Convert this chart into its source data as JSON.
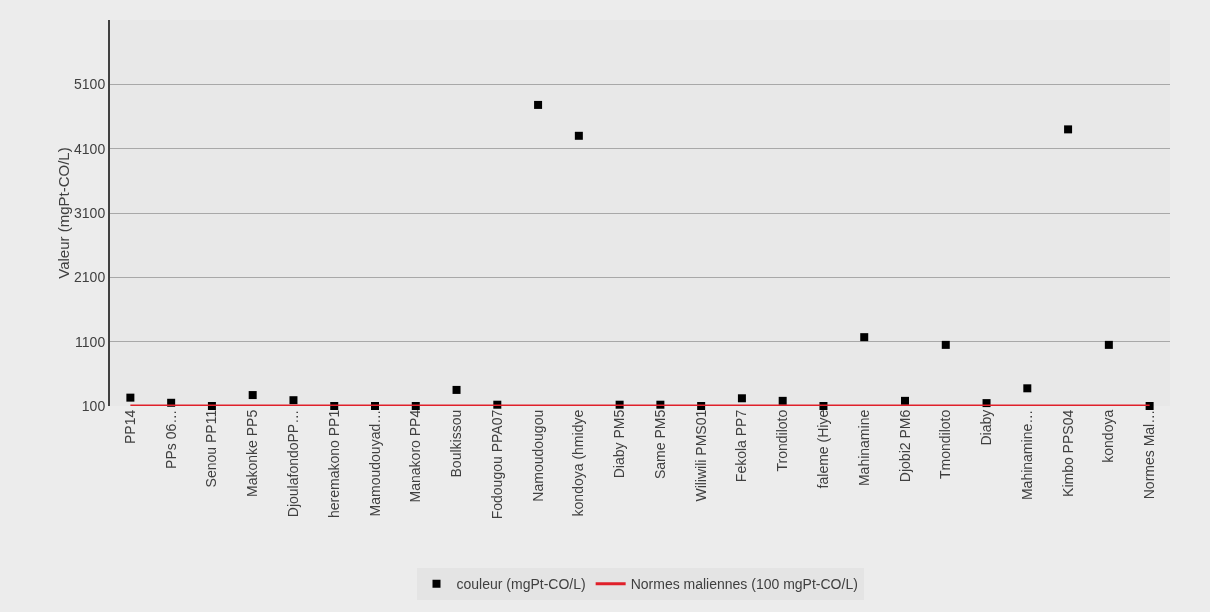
{
  "chart_data": {
    "type": "scatter",
    "ylabel": "Valeur (mgPt-CO/L)",
    "categories": [
      "PP14",
      "PPs 06…",
      "Senou PP11",
      "Makonke PP5",
      "DjoulafondoPP…",
      "heremakono PP1",
      "Mamoudouyad…",
      "Manakoro PP4",
      "Boulkissou",
      "Fodougou PPA07",
      "Namoudougou",
      "kondoya (hmidye",
      "Diaby PM5",
      "Same PM5",
      "Wiliwili PMS01",
      "Fekola PP7",
      "Trondiloto",
      "faleme (Hiye",
      "Mahinamine",
      "Djobi2 PM6",
      "Tmondiloto",
      "Diaby",
      "Mahinamine…",
      "Kimbo PPS04",
      "kondoya",
      "Normes Mal…"
    ],
    "series": [
      {
        "name": "couleur (mgPt-CO/L)",
        "color": "#000000",
        "marker": "square",
        "values": [
          230,
          150,
          100,
          270,
          190,
          100,
          100,
          100,
          350,
          120,
          4780,
          4300,
          120,
          120,
          100,
          220,
          180,
          100,
          1170,
          180,
          1050,
          145,
          375,
          4400,
          1050,
          100
        ]
      },
      {
        "name": "Normes maliennes (100 mgPt-CO/L)",
        "type": "line",
        "color": "#e0202a",
        "marker": "none",
        "values": [
          100,
          100,
          100,
          100,
          100,
          100,
          100,
          100,
          100,
          100,
          100,
          100,
          100,
          100,
          100,
          100,
          100,
          100,
          100,
          100,
          100,
          100,
          100,
          100,
          100,
          100
        ]
      }
    ],
    "ylim": [
      100,
      6100
    ],
    "yticks": [
      100,
      1100,
      2100,
      3100,
      4100,
      5100
    ],
    "grid": "y",
    "legend": "bottom"
  }
}
